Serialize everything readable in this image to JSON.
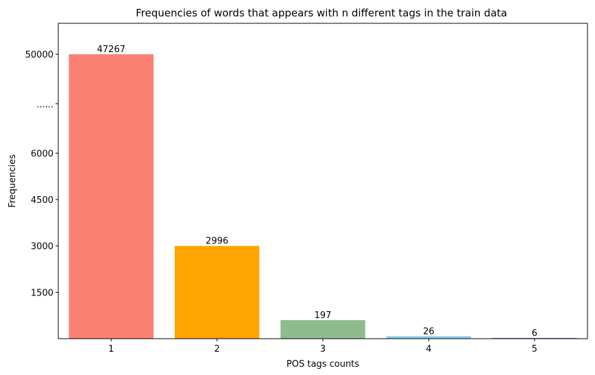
{
  "chart_data": {
    "type": "bar",
    "title": "Frequencies of words that appears with n different tags in the train data",
    "xlabel": "POS tags counts",
    "ylabel": "Frequencies",
    "categories": [
      "1",
      "2",
      "3",
      "4",
      "5"
    ],
    "values": [
      47267,
      2996,
      197,
      26,
      6
    ],
    "data_labels": [
      "47267",
      "2996",
      "197",
      "26",
      "6"
    ],
    "display_scale_note": "broken y axis: ticks 1500, 3000, 4500, 6000, ......, 50000",
    "bar_colors": [
      "#fa8072",
      "#ffa500",
      "#8fbc8f",
      "#87ceeb",
      "#9370db"
    ],
    "y_ticks": [
      {
        "label": "1500",
        "level": 1500
      },
      {
        "label": "3000",
        "level": 3000
      },
      {
        "label": "4500",
        "level": 4500
      },
      {
        "label": "6000",
        "level": 6000
      },
      {
        "label": "......",
        "level": 7600
      },
      {
        "label": "50000",
        "level": 9200
      }
    ],
    "bar_display_levels": [
      9200,
      3000,
      600,
      80,
      24
    ],
    "ylim": [
      0,
      10200
    ],
    "grid": false,
    "legend": "none"
  }
}
